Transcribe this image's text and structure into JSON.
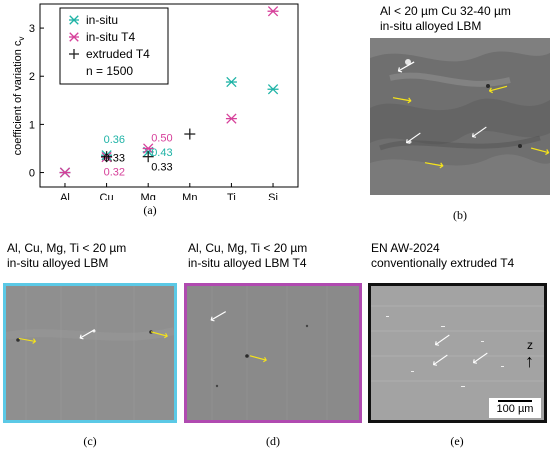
{
  "chart_data": {
    "type": "scatter",
    "ylabel": "coefficient of variation c",
    "ylabel_sub": "v",
    "categories": [
      "Al",
      "Cu",
      "Mg",
      "Mn",
      "Ti",
      "Si"
    ],
    "ylim": [
      -0.3,
      3.5
    ],
    "yticks": [
      "0",
      "1",
      "2",
      "3"
    ],
    "legend": {
      "entries": [
        {
          "label": "in-situ",
          "marker": "asterisk",
          "color": "#1fb3a6"
        },
        {
          "label": "in-situ T4",
          "marker": "asterisk",
          "color": "#d6409a"
        },
        {
          "label": "extruded T4",
          "marker": "plus",
          "color": "#222222"
        }
      ],
      "note": "n = 1500",
      "placement": "top-left"
    },
    "series": [
      {
        "name": "in-situ",
        "color": "#1fb3a6",
        "points": [
          {
            "cat": "Al",
            "y": 0.0
          },
          {
            "cat": "Cu",
            "y": 0.36
          },
          {
            "cat": "Mg",
            "y": 0.43
          },
          {
            "cat": "Ti",
            "y": 1.88
          },
          {
            "cat": "Si",
            "y": 1.73
          }
        ]
      },
      {
        "name": "in-situ T4",
        "color": "#d6409a",
        "points": [
          {
            "cat": "Al",
            "y": 0.0
          },
          {
            "cat": "Cu",
            "y": 0.32
          },
          {
            "cat": "Mg",
            "y": 0.5
          },
          {
            "cat": "Ti",
            "y": 1.12
          },
          {
            "cat": "Si",
            "y": 3.35
          }
        ]
      },
      {
        "name": "extruded T4",
        "color": "#222222",
        "points": [
          {
            "cat": "Cu",
            "y": 0.33
          },
          {
            "cat": "Mg",
            "y": 0.33
          },
          {
            "cat": "Mn",
            "y": 0.8
          }
        ]
      }
    ],
    "annotations": [
      {
        "text": "0.36",
        "color": "#1fb3a6",
        "cat": "Cu",
        "y": 0.7
      },
      {
        "text": "0.33",
        "color": "#000000",
        "cat": "Cu",
        "y": 0.31
      },
      {
        "text": "0.32",
        "color": "#d6409a",
        "cat": "Cu",
        "y": 0.02
      },
      {
        "text": "0.50",
        "color": "#d6409a",
        "cat": "Mg",
        "y": 0.73
      },
      {
        "text": "0.43",
        "color": "#1fb3a6",
        "cat": "Mg",
        "y": 0.43
      },
      {
        "text": "0.33",
        "color": "#000000",
        "cat": "Mg",
        "y": 0.13
      }
    ]
  },
  "captions": {
    "a": "(a)",
    "b": "(b)",
    "c": "(c)",
    "d": "(d)",
    "e": "(e)"
  },
  "panels": {
    "b": {
      "line1": "Al < 20 µm Cu 32-40 µm",
      "line2": "in-situ alloyed LBM"
    },
    "c": {
      "line1": "Al, Cu, Mg, Ti < 20 µm",
      "line2": "in-situ alloyed LBM",
      "border": "#5bc9e6"
    },
    "d": {
      "line1": "Al, Cu, Mg, Ti < 20 µm",
      "line2": "in-situ alloyed LBM T4",
      "border": "#b04ab0"
    },
    "e": {
      "line1": "EN AW-2024",
      "line2": "conventionally extruded T4",
      "border": "#111111",
      "axis_label": "z",
      "scale_bar": "100 µm"
    }
  },
  "arrow_colors": {
    "yellow": "#f5e31a",
    "white": "#ffffff"
  }
}
